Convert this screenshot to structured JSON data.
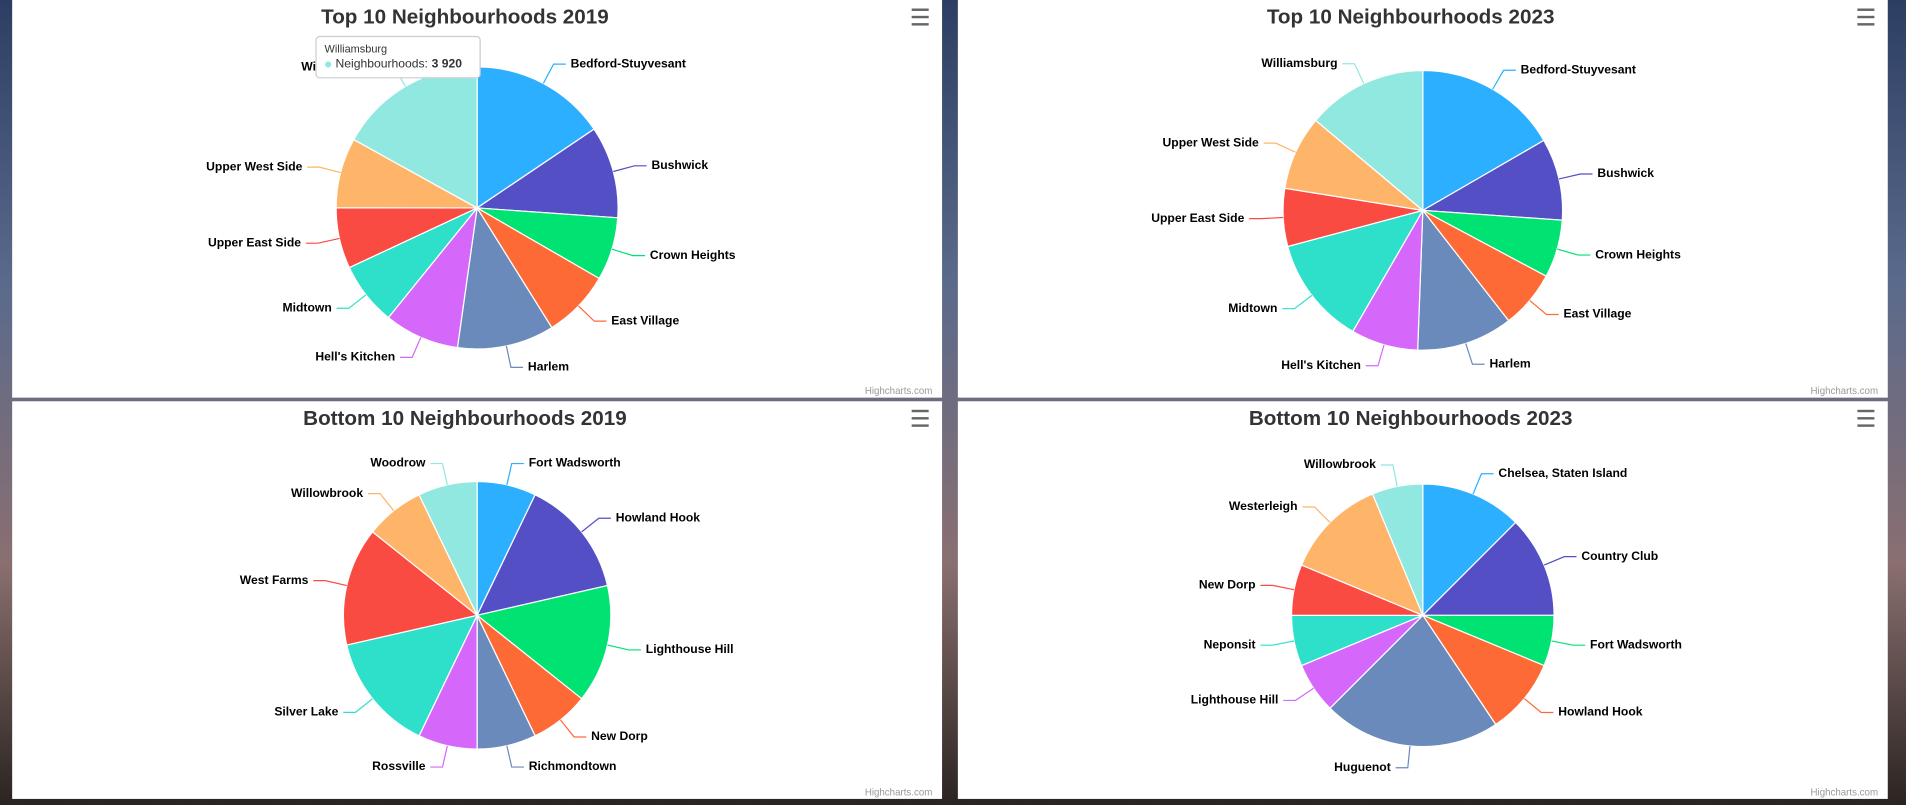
{
  "chart_data": [
    {
      "type": "pie",
      "title": "Top 10 Neighbourhoods 2019",
      "name": "Neighbourhoods",
      "credits": "Highcharts.com",
      "categories": [
        "Bedford-Stuyvesant",
        "Bushwick",
        "Crown Heights",
        "East Village",
        "Harlem",
        "Hell's Kitchen",
        "Midtown",
        "Upper East Side",
        "Upper West Side",
        "Williamsburg"
      ],
      "values": [
        3600,
        2440,
        1670,
        1800,
        2570,
        1990,
        1670,
        1610,
        1860,
        3920
      ],
      "colors": [
        "#2caffe",
        "#544fc5",
        "#00e272",
        "#fe6a35",
        "#6b8abc",
        "#d568fb",
        "#2ee0ca",
        "#fa4b42",
        "#feb56a",
        "#91e8e1"
      ],
      "tooltip": {
        "category": "Williamsburg",
        "series": "Neighbourhoods:",
        "value": "3 920"
      }
    },
    {
      "type": "pie",
      "title": "Top 10 Neighbourhoods 2023",
      "credits": "Highcharts.com",
      "categories": [
        "Bedford-Stuyvesant",
        "Bushwick",
        "Crown Heights",
        "East Village",
        "Harlem",
        "Hell's Kitchen",
        "Midtown",
        "Upper East Side",
        "Upper West Side",
        "Williamsburg"
      ],
      "values": [
        3840,
        2180,
        1540,
        1540,
        2560,
        1790,
        2880,
        1540,
        1980,
        3200
      ],
      "colors": [
        "#2caffe",
        "#544fc5",
        "#00e272",
        "#fe6a35",
        "#6b8abc",
        "#d568fb",
        "#2ee0ca",
        "#fa4b42",
        "#feb56a",
        "#91e8e1"
      ]
    },
    {
      "type": "pie",
      "title": "Bottom 10 Neighbourhoods 2019",
      "credits": "Highcharts.com",
      "categories": [
        "Fort Wadsworth",
        "Howland Hook",
        "Lighthouse Hill",
        "New Dorp",
        "Richmondtown",
        "Rossville",
        "Silver Lake",
        "West Farms",
        "Willowbrook",
        "Woodrow"
      ],
      "values": [
        1,
        2,
        2,
        1,
        1,
        1,
        2,
        2,
        1,
        1
      ],
      "colors": [
        "#2caffe",
        "#544fc5",
        "#00e272",
        "#fe6a35",
        "#6b8abc",
        "#d568fb",
        "#2ee0ca",
        "#fa4b42",
        "#feb56a",
        "#91e8e1"
      ]
    },
    {
      "type": "pie",
      "title": "Bottom 10 Neighbourhoods 2023",
      "credits": "Highcharts.com",
      "categories": [
        "Chelsea, Staten Island",
        "Country Club",
        "Fort Wadsworth",
        "Howland Hook",
        "Huguenot",
        "Lighthouse Hill",
        "Neponsit",
        "New Dorp",
        "Westerleigh",
        "Willowbrook"
      ],
      "values": [
        4,
        4,
        2,
        3,
        7,
        2,
        2,
        2,
        4,
        2
      ],
      "colors": [
        "#2caffe",
        "#544fc5",
        "#00e272",
        "#fe6a35",
        "#6b8abc",
        "#d568fb",
        "#2ee0ca",
        "#fa4b42",
        "#feb56a",
        "#91e8e1"
      ]
    }
  ]
}
